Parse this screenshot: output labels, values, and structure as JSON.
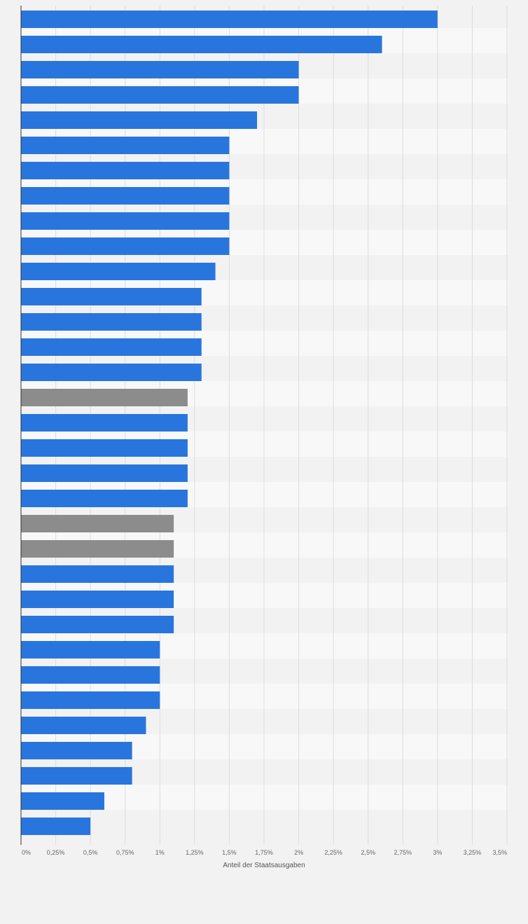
{
  "chart_data": {
    "type": "bar",
    "orientation": "horizontal",
    "xlabel": "Anteil der Staatsausgaben",
    "xlim": [
      0,
      3.5
    ],
    "xticks": [
      {
        "value": 0,
        "label": "0%"
      },
      {
        "value": 0.25,
        "label": "0,25%"
      },
      {
        "value": 0.5,
        "label": "0,5%"
      },
      {
        "value": 0.75,
        "label": "0,75%"
      },
      {
        "value": 1,
        "label": "1%"
      },
      {
        "value": 1.25,
        "label": "1,25%"
      },
      {
        "value": 1.5,
        "label": "1,5%"
      },
      {
        "value": 1.75,
        "label": "1,75%"
      },
      {
        "value": 2,
        "label": "2%"
      },
      {
        "value": 2.25,
        "label": "2,25%"
      },
      {
        "value": 2.5,
        "label": "2,5%"
      },
      {
        "value": 2.75,
        "label": "2,75%"
      },
      {
        "value": 3,
        "label": "3%"
      },
      {
        "value": 3.25,
        "label": "3,25%"
      },
      {
        "value": 3.5,
        "label": "3,5%"
      }
    ],
    "grid": true,
    "values": [
      3.0,
      2.6,
      2.0,
      2.0,
      1.7,
      1.5,
      1.5,
      1.5,
      1.5,
      1.5,
      1.4,
      1.3,
      1.3,
      1.3,
      1.3,
      1.2,
      1.2,
      1.2,
      1.2,
      1.2,
      1.1,
      1.1,
      1.1,
      1.1,
      1.1,
      1.0,
      1.0,
      1.0,
      0.9,
      0.8,
      0.8,
      0.6,
      0.5
    ],
    "highlighted_indices": [
      15,
      20,
      21
    ],
    "colors": {
      "bar": "#2876dd",
      "highlight": "#8c8c8c",
      "gridline": "#dcdcdc",
      "axis": "#333333",
      "band_even": "#f2f2f2",
      "band_odd": "#f8f8f8"
    }
  }
}
